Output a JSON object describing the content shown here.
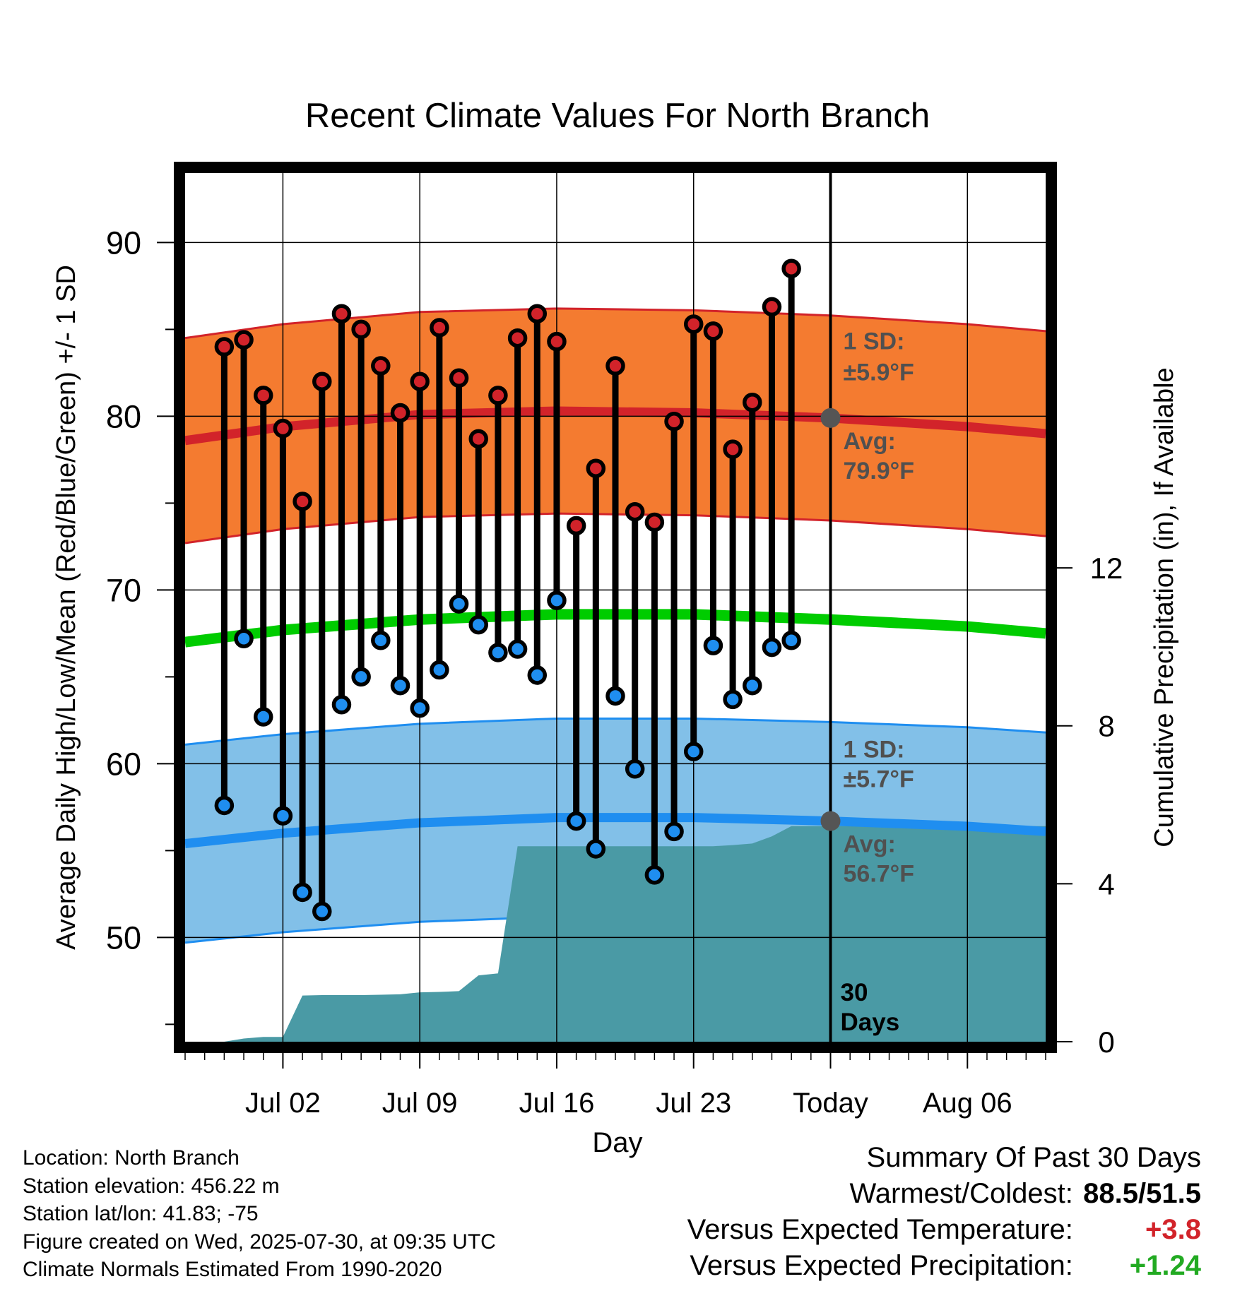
{
  "chart_data": {
    "type": "line",
    "title": "Recent Climate Values For North Branch",
    "xlabel": "Day",
    "ylabel_left": "Average Daily High/Low/Mean (Red/Blue/Green) +/- 1 SD",
    "ylabel_right": "Cumulative Precipitation (in), If Available",
    "ylim_left": [
      44,
      94
    ],
    "ylim_right": [
      0,
      22
    ],
    "yticks_left": [
      50,
      60,
      70,
      80,
      90
    ],
    "yticks_right": [
      0,
      4,
      8,
      12
    ],
    "x_range": [
      "2025-06-27",
      "2025-08-10"
    ],
    "x_ticks": [
      {
        "date": "2025-07-02",
        "label": "Jul 02"
      },
      {
        "date": "2025-07-09",
        "label": "Jul 09"
      },
      {
        "date": "2025-07-16",
        "label": "Jul 16"
      },
      {
        "date": "2025-07-23",
        "label": "Jul 23"
      },
      {
        "date": "2025-07-30",
        "label": "Today"
      },
      {
        "date": "2025-08-06",
        "label": "Aug 06"
      }
    ],
    "today_marker": {
      "date": "2025-07-30",
      "label": [
        "30",
        "Days"
      ]
    },
    "daily": {
      "dates": [
        "2025-06-29",
        "2025-06-30",
        "2025-07-01",
        "2025-07-02",
        "2025-07-03",
        "2025-07-04",
        "2025-07-05",
        "2025-07-06",
        "2025-07-07",
        "2025-07-08",
        "2025-07-09",
        "2025-07-10",
        "2025-07-11",
        "2025-07-12",
        "2025-07-13",
        "2025-07-14",
        "2025-07-15",
        "2025-07-16",
        "2025-07-17",
        "2025-07-18",
        "2025-07-19",
        "2025-07-20",
        "2025-07-21",
        "2025-07-22",
        "2025-07-23",
        "2025-07-24",
        "2025-07-25",
        "2025-07-26",
        "2025-07-27",
        "2025-07-28"
      ],
      "high": [
        84.0,
        84.4,
        81.2,
        79.3,
        75.1,
        82.0,
        85.9,
        85.0,
        82.9,
        80.2,
        82.0,
        85.1,
        82.2,
        78.7,
        81.2,
        84.5,
        85.9,
        84.3,
        73.7,
        77.0,
        82.9,
        74.5,
        73.9,
        79.7,
        85.3,
        84.9,
        78.1,
        80.8,
        86.3,
        88.5
      ],
      "low": [
        57.6,
        67.2,
        62.7,
        57.0,
        52.6,
        51.5,
        63.4,
        65.0,
        67.1,
        64.5,
        63.2,
        65.4,
        69.2,
        68.0,
        66.4,
        66.6,
        65.1,
        69.4,
        56.7,
        55.1,
        63.9,
        59.7,
        53.6,
        56.1,
        60.7,
        66.8,
        63.7,
        64.5,
        66.7,
        67.1
      ]
    },
    "normals": {
      "dates": [
        "2025-06-27",
        "2025-07-02",
        "2025-07-09",
        "2025-07-16",
        "2025-07-23",
        "2025-07-30",
        "2025-08-06",
        "2025-08-10"
      ],
      "high_avg": [
        78.6,
        79.4,
        80.1,
        80.3,
        80.2,
        79.9,
        79.4,
        79.0
      ],
      "low_avg": [
        55.4,
        56.0,
        56.6,
        56.9,
        56.9,
        56.7,
        56.4,
        56.1
      ],
      "mean_avg": [
        67.0,
        67.7,
        68.3,
        68.6,
        68.6,
        68.3,
        67.9,
        67.5
      ],
      "high_sd": 5.9,
      "low_sd": 5.7
    },
    "precip": {
      "dates": [
        "2025-06-28",
        "2025-06-29",
        "2025-06-30",
        "2025-07-01",
        "2025-07-02",
        "2025-07-03",
        "2025-07-04",
        "2025-07-05",
        "2025-07-06",
        "2025-07-07",
        "2025-07-08",
        "2025-07-09",
        "2025-07-10",
        "2025-07-11",
        "2025-07-12",
        "2025-07-13",
        "2025-07-14",
        "2025-07-15",
        "2025-07-16",
        "2025-07-17",
        "2025-07-18",
        "2025-07-19",
        "2025-07-20",
        "2025-07-21",
        "2025-07-22",
        "2025-07-23",
        "2025-07-24",
        "2025-07-25",
        "2025-07-26",
        "2025-07-27",
        "2025-07-28",
        "2025-08-10"
      ],
      "cumulative": [
        0.0,
        0.0,
        0.08,
        0.12,
        0.12,
        1.17,
        1.18,
        1.18,
        1.18,
        1.19,
        1.2,
        1.25,
        1.26,
        1.28,
        1.68,
        1.73,
        4.95,
        4.95,
        4.95,
        4.95,
        4.95,
        4.95,
        4.95,
        4.95,
        4.95,
        4.95,
        4.95,
        4.98,
        5.02,
        5.2,
        5.46,
        5.46
      ]
    },
    "annotations": {
      "high_sd": {
        "label": "1 SD:",
        "value": "±5.9°F"
      },
      "high_avg": {
        "label": "Avg:",
        "value": "79.9°F"
      },
      "low_sd": {
        "label": "1 SD:",
        "value": "±5.7°F"
      },
      "low_avg": {
        "label": "Avg:",
        "value": "56.7°F"
      }
    },
    "colors": {
      "high_band": "#f47b30",
      "high_line": "#d2232a",
      "low_band": "#82c0e8",
      "low_line": "#1f8ef0",
      "mean_line": "#00cc00",
      "precip": "#4a9aa5",
      "high_dot": "#d2232a",
      "low_dot": "#1f8ef0",
      "annotation": "#505050"
    }
  },
  "footer": {
    "location": "Location: North Branch",
    "elevation": "Station elevation: 456.22 m",
    "latlon": "Station lat/lon: 41.83; -75",
    "created": "Figure created on Wed, 2025-07-30, at 09:35 UTC",
    "normals": "Climate Normals Estimated From 1990-2020"
  },
  "summary": {
    "title": "Summary Of Past 30 Days",
    "warmest_label": "Warmest/Coldest:",
    "warmest_value": "88.5/51.5",
    "temp_label": "Versus Expected Temperature:",
    "temp_value": "+3.8",
    "temp_color": "#d2232a",
    "precip_label": "Versus Expected Precipitation:",
    "precip_value": "+1.24",
    "precip_color": "#22aa22"
  }
}
